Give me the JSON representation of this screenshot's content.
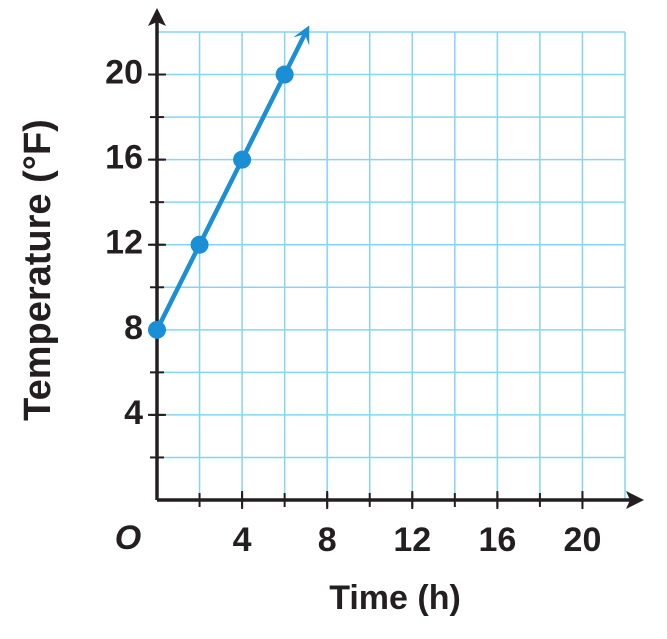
{
  "chart_data": {
    "type": "line",
    "x_label": "Time (h)",
    "y_label": "Temperature (°F)",
    "origin_label": "O",
    "x": [
      0,
      2,
      4,
      6
    ],
    "series": [
      {
        "color": "#1b8fd6",
        "values": [
          8,
          12,
          16,
          20
        ]
      }
    ],
    "xlim": [
      0,
      22
    ],
    "ylim": [
      0,
      22
    ],
    "xticks": [
      4,
      8,
      12,
      16,
      20
    ],
    "yticks": [
      4,
      8,
      12,
      16,
      20
    ],
    "grid": true,
    "grid_step": 2,
    "grid_color": "#86d4f2"
  }
}
